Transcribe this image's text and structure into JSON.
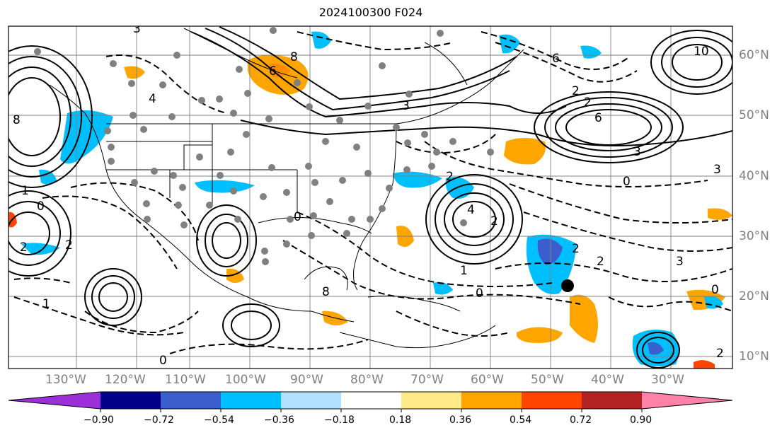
{
  "title": "2024100300 F024",
  "lon_labels": [
    "130°W",
    "120°W",
    "110°W",
    "100°W",
    "90°W",
    "80°W",
    "70°W",
    "60°W",
    "50°W",
    "40°W",
    "30°W"
  ],
  "lat_labels": [
    "60°N",
    "50°N",
    "40°N",
    "30°N",
    "20°N",
    "10°N"
  ],
  "colorbar": {
    "ticks": [
      "−0.90",
      "−0.72",
      "−0.54",
      "−0.36",
      "−0.18",
      "0.18",
      "0.36",
      "0.54",
      "0.72",
      "0.90"
    ],
    "colors": [
      "#9b30d9",
      "#00008b",
      "#3a5fcd",
      "#00bfff",
      "#b0e2ff",
      "#ffffff",
      "#ffe989",
      "#ffa500",
      "#ff4500",
      "#b22222",
      "#ff82ab"
    ]
  },
  "contour_labels": [
    "3",
    "8",
    "6",
    "6",
    "10",
    "8",
    "4",
    "3",
    "2",
    "2",
    "6",
    "3",
    "3",
    "2",
    "4",
    "2",
    "1",
    "0",
    "1",
    "0",
    "2",
    "2",
    "2",
    "2",
    "1",
    "3",
    "0",
    "0",
    "0",
    "2",
    "8",
    "0"
  ],
  "colors": {
    "dot": "#808080",
    "grid": "#808080",
    "contour": "#000000"
  }
}
